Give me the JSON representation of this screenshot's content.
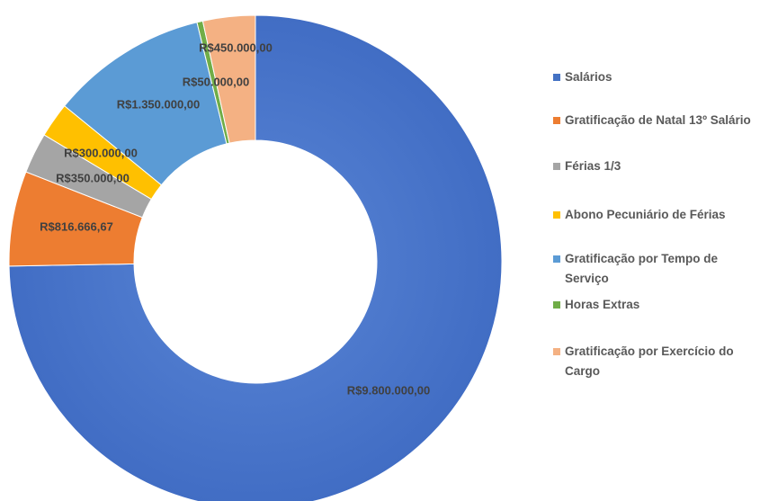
{
  "chart_data": {
    "type": "donut",
    "categories": [
      "Salários",
      "Gratificação de Natal  13º Salário",
      "Férias 1/3",
      "Abono Pecuniário de Férias",
      "Gratificação por Tempo de Serviço",
      "Horas Extras",
      "Gratificação por Exercício do Cargo"
    ],
    "values": [
      9800000,
      816666.67,
      350000,
      300000,
      1350000,
      50000,
      450000
    ],
    "value_labels": [
      "R$9.800.000,00",
      "R$816.666,67",
      "R$350.000,00",
      "R$300.000,00",
      "R$1.350.000,00",
      "R$50.000,00",
      "R$450.000,00"
    ],
    "colors": [
      "#4472c4",
      "#ed7d31",
      "#a5a5a5",
      "#ffc000",
      "#5b9bd5",
      "#70ad47",
      "#f4b183"
    ],
    "legend": "right"
  }
}
